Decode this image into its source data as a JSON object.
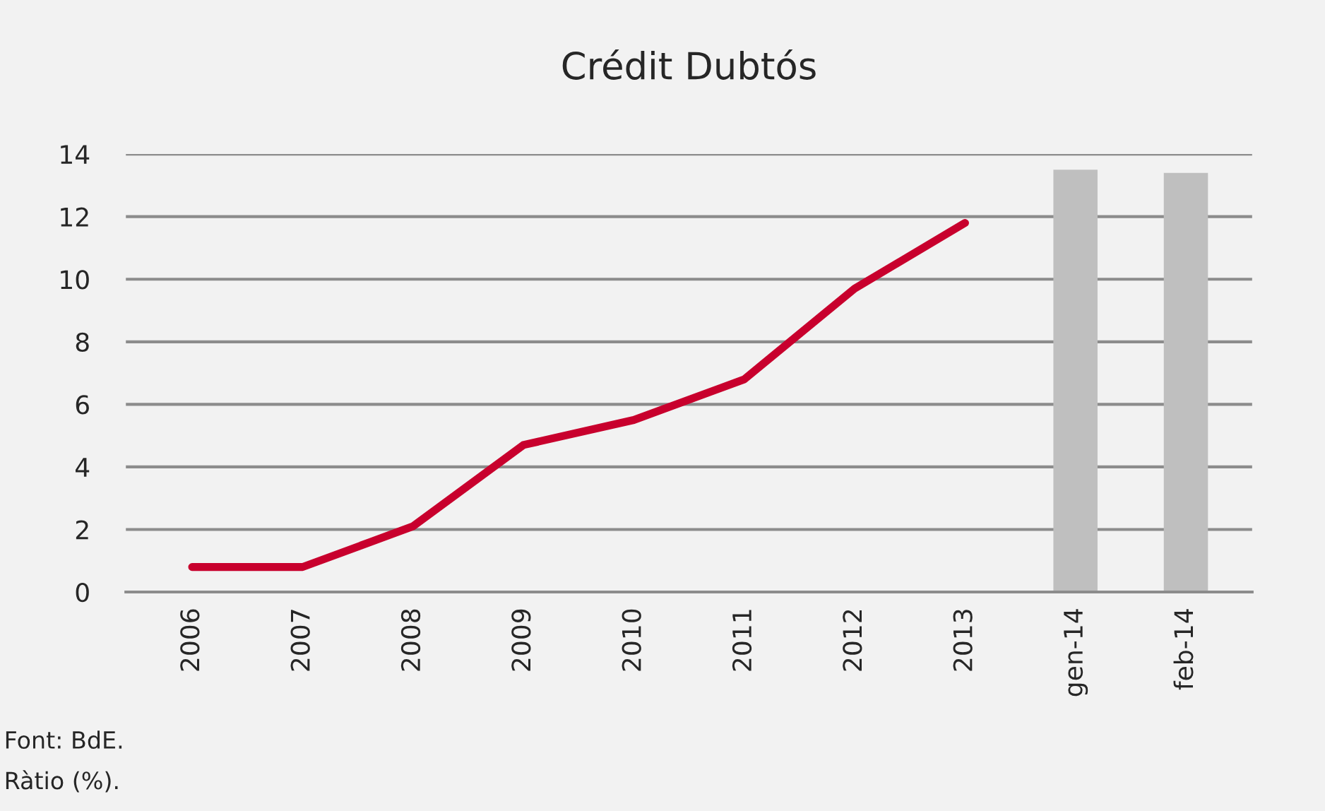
{
  "chart_data": {
    "type": "line",
    "title": "Crédit Dubtós",
    "categories": [
      "2006",
      "2007",
      "2008",
      "2009",
      "2010",
      "2011",
      "2012",
      "2013",
      "gen-14",
      "feb-14"
    ],
    "series": [
      {
        "color": "#c8002d",
        "values": [
          0.8,
          0.8,
          2.1,
          4.7,
          5.5,
          6.8,
          9.7,
          11.8,
          null,
          null
        ]
      },
      {
        "type": "bar",
        "color": "#bfbfbf",
        "values": [
          null,
          null,
          null,
          null,
          null,
          null,
          null,
          null,
          13.5,
          13.4
        ]
      }
    ],
    "ylim": [
      0,
      14
    ],
    "yticks": [
      0,
      2,
      4,
      6,
      8,
      10,
      12,
      14
    ],
    "grid": "y",
    "legend": false,
    "annotations": [
      "Font: BdE.",
      "Ràtio (%)."
    ]
  }
}
